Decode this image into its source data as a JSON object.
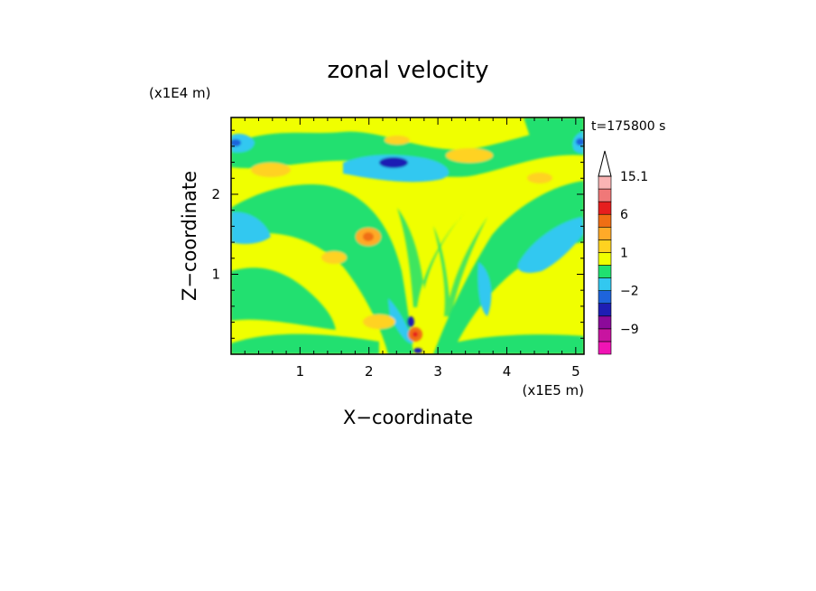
{
  "chart_data": {
    "type": "heatmap",
    "title": "zonal velocity",
    "xlabel": "X−coordinate",
    "ylabel": "Z−coordinate",
    "x_scale_label": "(x1E5 m)",
    "y_scale_label": "(x1E4 m)",
    "time_label": "t=175800 s",
    "xlim": [
      0,
      5.12
    ],
    "ylim": [
      0,
      2.96
    ],
    "x_ticks": [
      1,
      2,
      3,
      4,
      5
    ],
    "y_ticks": [
      1,
      2
    ],
    "x_tick_labels": [
      "1",
      "2",
      "3",
      "4",
      "5"
    ],
    "y_tick_labels": [
      "1",
      "2"
    ],
    "colorbar": {
      "levels": [
        -15,
        -12,
        -9,
        -6,
        -3,
        -2,
        -1,
        0,
        1,
        2,
        3,
        6,
        9,
        12,
        15.1
      ],
      "colors": [
        "#f014b4",
        "#c814a0",
        "#8c0a9a",
        "#1e1eb4",
        "#1e64dc",
        "#32c8f0",
        "#20e070",
        "#f0ff00",
        "#ffd220",
        "#ffaa28",
        "#f06e14",
        "#e61e1e",
        "#f07878",
        "#fab4b4"
      ],
      "tick_labels": [
        "15.1",
        "6",
        "1",
        "−2",
        "−9"
      ],
      "tick_values": [
        15.1,
        6,
        1,
        -2,
        -9
      ]
    },
    "field_features": [
      {
        "x": 2.3,
        "z": 2.4,
        "value": -8
      },
      {
        "x": 0.1,
        "z": 2.7,
        "value": -4
      },
      {
        "x": 5.05,
        "z": 2.7,
        "value": -4
      },
      {
        "x": 2.62,
        "z": 0.2,
        "value": 8
      },
      {
        "x": 2.55,
        "z": 0.35,
        "value": -8
      },
      {
        "x": 1.95,
        "z": 1.5,
        "value": 3
      },
      {
        "x": 1.3,
        "z": 2.15,
        "value": 2
      },
      {
        "x": 3.55,
        "z": 2.5,
        "value": 2
      }
    ]
  }
}
